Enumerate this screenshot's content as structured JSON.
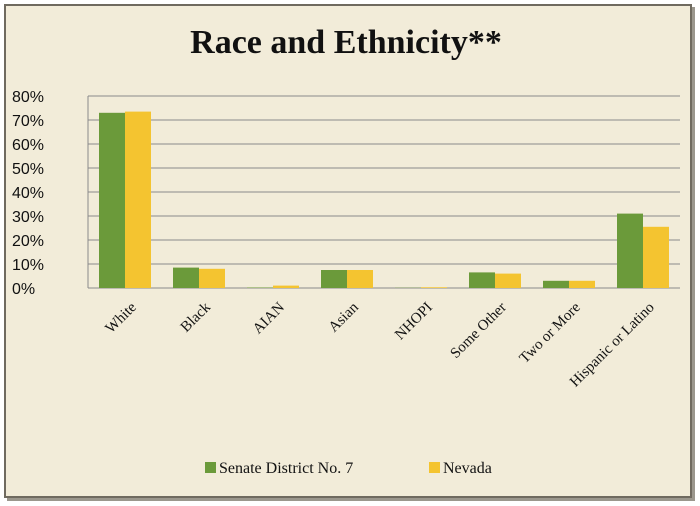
{
  "chart_data": {
    "type": "bar",
    "title": "Race and Ethnicity**",
    "categories": [
      "White",
      "Black",
      "AIAN",
      "Asian",
      "NHOPI",
      "Some Other",
      "Two or More",
      "Hispanic or Latino"
    ],
    "series": [
      {
        "name": "Senate District No. 7",
        "color": "#6b9a3a",
        "values": [
          73,
          8.5,
          0.2,
          7.5,
          0.1,
          6.5,
          3,
          31
        ]
      },
      {
        "name": "Nevada",
        "color": "#f4c430",
        "values": [
          73.5,
          8,
          1,
          7.5,
          0.3,
          6,
          3,
          25.5
        ]
      }
    ],
    "ylim": [
      0,
      80
    ],
    "yticks": [
      "0%",
      "10%",
      "20%",
      "30%",
      "40%",
      "50%",
      "60%",
      "70%",
      "80%"
    ],
    "grid": true,
    "legend_position": "bottom"
  }
}
